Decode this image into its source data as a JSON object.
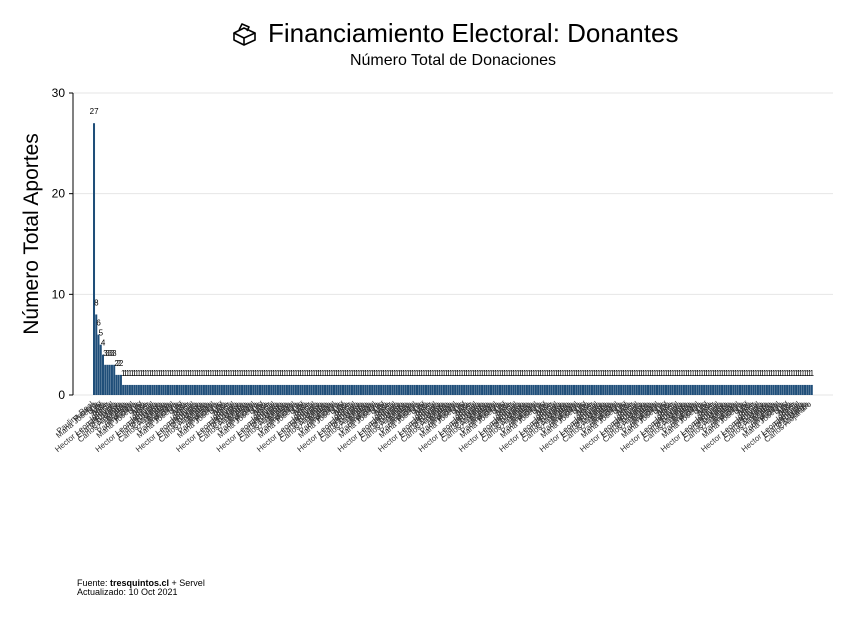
{
  "colors": {
    "bar": "#1f4e79",
    "grid": "#e6e6e6",
    "axis": "#000000"
  },
  "caption": {
    "source_prefix": "Fuente: ",
    "source_site": "tresquintos.cl",
    "source_suffix": " + Servel",
    "updated": "Actualizado: 10 Oct 2021"
  },
  "chart_data": {
    "type": "bar",
    "title": "Financiamiento Electoral: Donantes",
    "title_icon": "ballot-box-icon",
    "subtitle": "Número Total de Donaciones",
    "xlabel": "",
    "ylabel": "Número Total Aportes",
    "ylim": [
      0,
      30
    ],
    "yticks": [
      0,
      10,
      20,
      30
    ],
    "grid": true,
    "legend": "none",
    "categories_note": "Over 300 donor names shown as rotated, overlapping x tick labels; only a few are legible.",
    "legible_categories": [
      "Paulina Real",
      "Patricia",
      "Maria Josefina",
      "Luis",
      "Leif",
      "Juan",
      "Jose",
      "Javier",
      "Ignacio",
      "Hector Leonardo Del",
      "Fernando",
      "Eliana Roxana",
      "Diego",
      "Constanza",
      "Carlos Alejandro",
      "Andrea",
      "Alma",
      "Alejandro"
    ],
    "series": [
      {
        "values_head": [
          27,
          8,
          6,
          5,
          4,
          3,
          3,
          3,
          3,
          3,
          2,
          2,
          2
        ],
        "tail_count": 308,
        "tail_value": 1
      }
    ],
    "data_labels_head": [
      "27",
      "8",
      "6",
      "5",
      "4",
      "3",
      "3",
      "3",
      "3",
      "3",
      "2",
      "2",
      "2"
    ]
  }
}
